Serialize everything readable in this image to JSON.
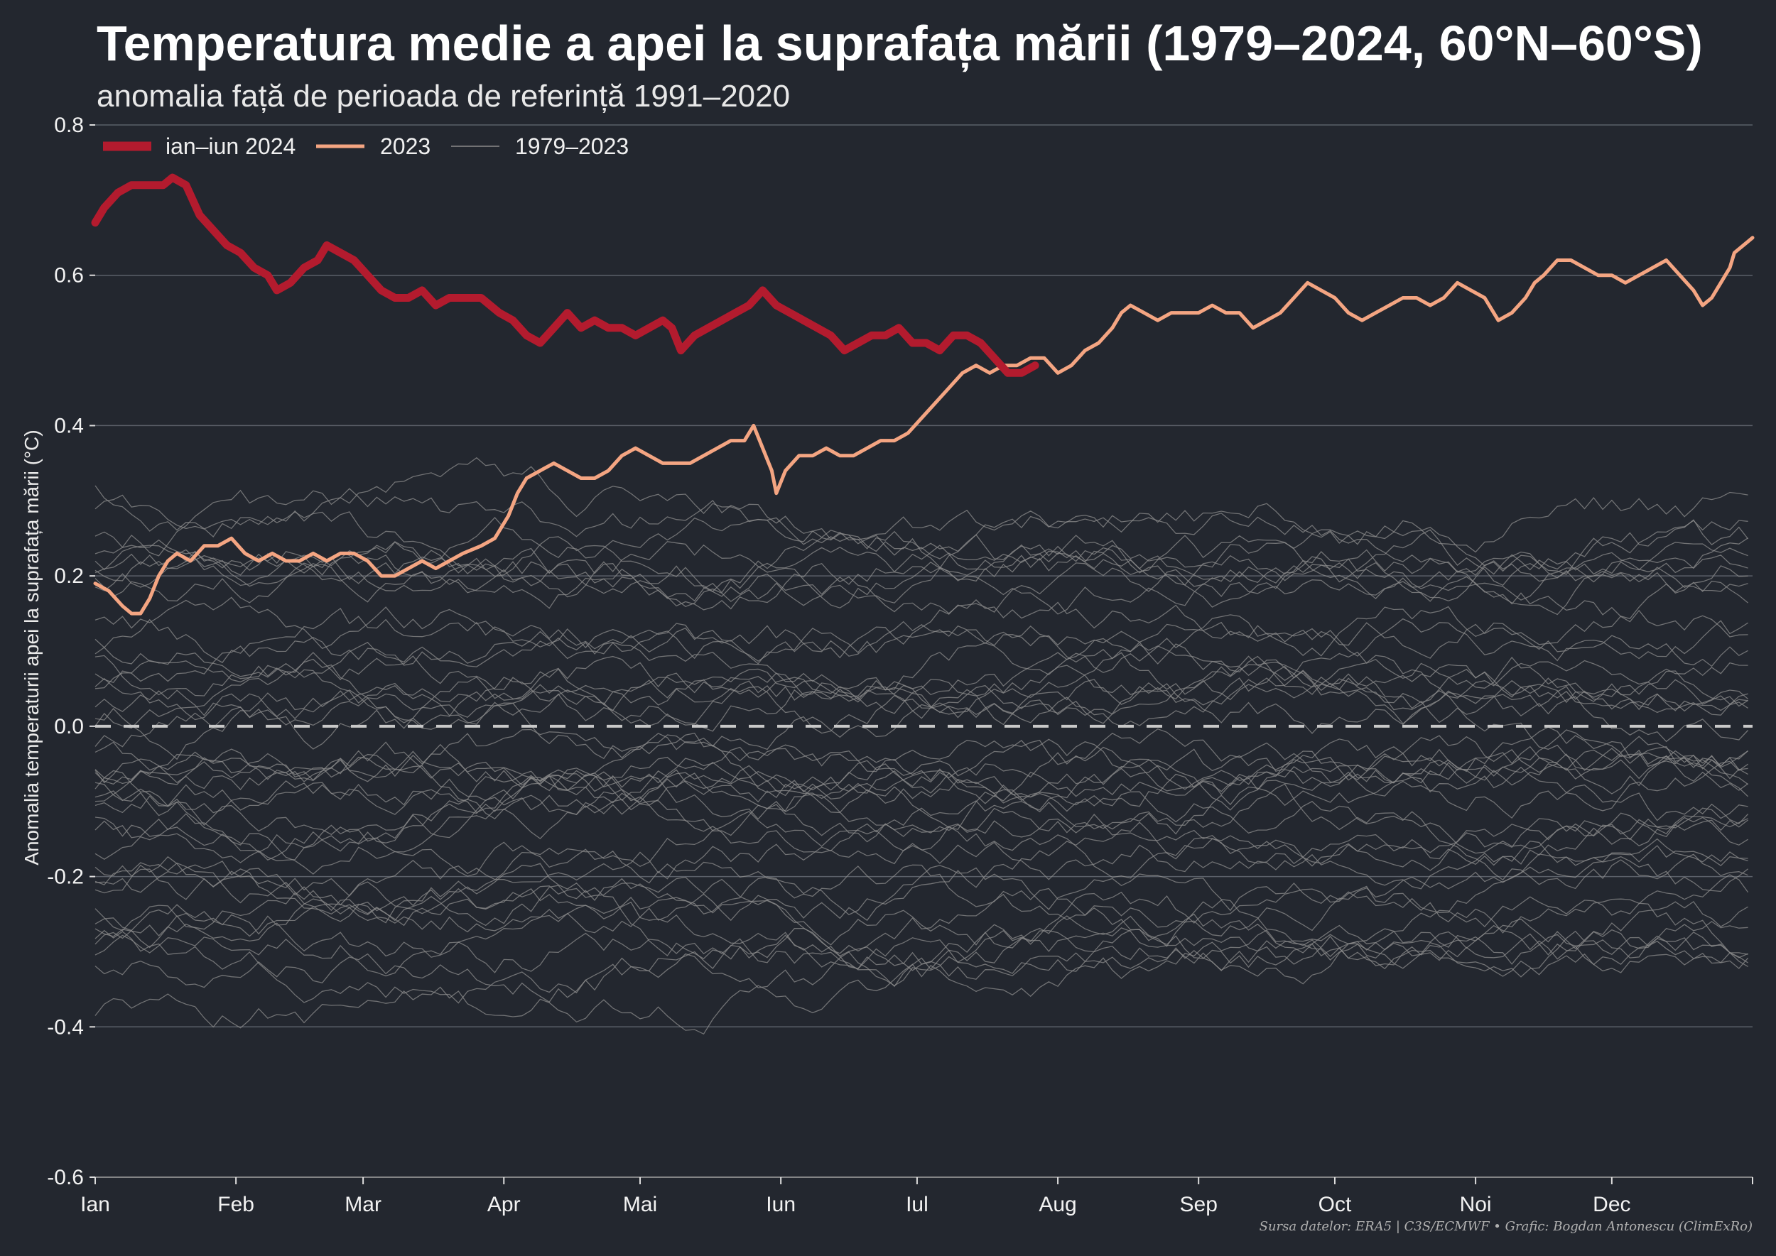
{
  "chart_data": {
    "type": "line",
    "title": "Temperatura medie a apei la suprafața mării (1979–2024, 60°N–60°S)",
    "subtitle": "anomalia față de perioada de referință 1991–2020",
    "ylabel": "Anomalia temperaturii apei la suprafața mării (°C)",
    "ylim": [
      -0.6,
      0.8
    ],
    "yticks": [
      -0.6,
      -0.4,
      -0.2,
      0.0,
      0.2,
      0.4,
      0.6,
      0.8
    ],
    "ytick_labels": [
      "-0.6",
      "-0.4",
      "-0.2",
      "0.0",
      "0.2",
      "0.4",
      "0.6",
      "0.8"
    ],
    "xlim": [
      1,
      366
    ],
    "xticks": [
      1,
      32,
      60,
      91,
      121,
      152,
      182,
      213,
      244,
      274,
      305,
      335
    ],
    "xtick_labels": [
      "Ian",
      "Feb",
      "Mar",
      "Apr",
      "Mai",
      "Iun",
      "Iul",
      "Aug",
      "Sep",
      "Oct",
      "Noi",
      "Dec"
    ],
    "reference_line": 0.0,
    "grid": "horizontal",
    "legend_position": "top-left",
    "legend": [
      {
        "label": "ian–iun 2024",
        "series": "2024"
      },
      {
        "label": "2023",
        "series": "2023"
      },
      {
        "label": "1979–2023",
        "series": "historical"
      }
    ],
    "series": [
      {
        "name": "ian–iun 2024",
        "color": "#b31b2e",
        "points": [
          [
            1,
            0.67
          ],
          [
            3,
            0.69
          ],
          [
            6,
            0.71
          ],
          [
            9,
            0.72
          ],
          [
            13,
            0.72
          ],
          [
            16,
            0.72
          ],
          [
            18,
            0.73
          ],
          [
            21,
            0.72
          ],
          [
            24,
            0.68
          ],
          [
            27,
            0.66
          ],
          [
            30,
            0.64
          ],
          [
            33,
            0.63
          ],
          [
            36,
            0.61
          ],
          [
            39,
            0.6
          ],
          [
            41,
            0.58
          ],
          [
            44,
            0.59
          ],
          [
            47,
            0.61
          ],
          [
            50,
            0.62
          ],
          [
            52,
            0.64
          ],
          [
            55,
            0.63
          ],
          [
            58,
            0.62
          ],
          [
            61,
            0.6
          ],
          [
            64,
            0.58
          ],
          [
            67,
            0.57
          ],
          [
            70,
            0.57
          ],
          [
            73,
            0.58
          ],
          [
            76,
            0.56
          ],
          [
            79,
            0.57
          ],
          [
            82,
            0.57
          ],
          [
            86,
            0.57
          ],
          [
            90,
            0.55
          ],
          [
            93,
            0.54
          ],
          [
            96,
            0.52
          ],
          [
            99,
            0.51
          ],
          [
            102,
            0.53
          ],
          [
            105,
            0.55
          ],
          [
            108,
            0.53
          ],
          [
            111,
            0.54
          ],
          [
            114,
            0.53
          ],
          [
            117,
            0.53
          ],
          [
            120,
            0.52
          ],
          [
            123,
            0.53
          ],
          [
            126,
            0.54
          ],
          [
            128,
            0.53
          ],
          [
            130,
            0.5
          ],
          [
            133,
            0.52
          ],
          [
            136,
            0.53
          ],
          [
            139,
            0.54
          ],
          [
            142,
            0.55
          ],
          [
            145,
            0.56
          ],
          [
            148,
            0.58
          ],
          [
            151,
            0.56
          ],
          [
            154,
            0.55
          ],
          [
            157,
            0.54
          ],
          [
            160,
            0.53
          ],
          [
            163,
            0.52
          ],
          [
            166,
            0.5
          ],
          [
            169,
            0.51
          ],
          [
            172,
            0.52
          ],
          [
            175,
            0.52
          ],
          [
            178,
            0.53
          ],
          [
            181,
            0.51
          ],
          [
            184,
            0.51
          ],
          [
            187,
            0.5
          ],
          [
            190,
            0.52
          ],
          [
            193,
            0.52
          ],
          [
            196,
            0.51
          ],
          [
            199,
            0.49
          ],
          [
            202,
            0.47
          ],
          [
            205,
            0.47
          ],
          [
            208,
            0.48
          ]
        ]
      },
      {
        "name": "2023",
        "color": "#f4a582",
        "points": [
          [
            1,
            0.19
          ],
          [
            4,
            0.18
          ],
          [
            7,
            0.16
          ],
          [
            9,
            0.15
          ],
          [
            11,
            0.15
          ],
          [
            13,
            0.17
          ],
          [
            15,
            0.2
          ],
          [
            17,
            0.22
          ],
          [
            19,
            0.23
          ],
          [
            22,
            0.22
          ],
          [
            25,
            0.24
          ],
          [
            28,
            0.24
          ],
          [
            31,
            0.25
          ],
          [
            34,
            0.23
          ],
          [
            37,
            0.22
          ],
          [
            40,
            0.23
          ],
          [
            43,
            0.22
          ],
          [
            46,
            0.22
          ],
          [
            49,
            0.23
          ],
          [
            52,
            0.22
          ],
          [
            55,
            0.23
          ],
          [
            58,
            0.23
          ],
          [
            61,
            0.22
          ],
          [
            64,
            0.2
          ],
          [
            67,
            0.2
          ],
          [
            70,
            0.21
          ],
          [
            73,
            0.22
          ],
          [
            76,
            0.21
          ],
          [
            79,
            0.22
          ],
          [
            82,
            0.23
          ],
          [
            86,
            0.24
          ],
          [
            89,
            0.25
          ],
          [
            92,
            0.28
          ],
          [
            94,
            0.31
          ],
          [
            96,
            0.33
          ],
          [
            99,
            0.34
          ],
          [
            102,
            0.35
          ],
          [
            105,
            0.34
          ],
          [
            108,
            0.33
          ],
          [
            111,
            0.33
          ],
          [
            114,
            0.34
          ],
          [
            117,
            0.36
          ],
          [
            120,
            0.37
          ],
          [
            123,
            0.36
          ],
          [
            126,
            0.35
          ],
          [
            129,
            0.35
          ],
          [
            132,
            0.35
          ],
          [
            135,
            0.36
          ],
          [
            138,
            0.37
          ],
          [
            141,
            0.38
          ],
          [
            144,
            0.38
          ],
          [
            146,
            0.4
          ],
          [
            148,
            0.37
          ],
          [
            150,
            0.34
          ],
          [
            151,
            0.31
          ],
          [
            153,
            0.34
          ],
          [
            156,
            0.36
          ],
          [
            159,
            0.36
          ],
          [
            162,
            0.37
          ],
          [
            165,
            0.36
          ],
          [
            168,
            0.36
          ],
          [
            171,
            0.37
          ],
          [
            174,
            0.38
          ],
          [
            177,
            0.38
          ],
          [
            180,
            0.39
          ],
          [
            183,
            0.41
          ],
          [
            186,
            0.43
          ],
          [
            189,
            0.45
          ],
          [
            192,
            0.47
          ],
          [
            195,
            0.48
          ],
          [
            198,
            0.47
          ],
          [
            201,
            0.48
          ],
          [
            204,
            0.48
          ],
          [
            207,
            0.49
          ],
          [
            210,
            0.49
          ],
          [
            213,
            0.47
          ],
          [
            216,
            0.48
          ],
          [
            219,
            0.5
          ],
          [
            222,
            0.51
          ],
          [
            225,
            0.53
          ],
          [
            227,
            0.55
          ],
          [
            229,
            0.56
          ],
          [
            232,
            0.55
          ],
          [
            235,
            0.54
          ],
          [
            238,
            0.55
          ],
          [
            241,
            0.55
          ],
          [
            244,
            0.55
          ],
          [
            247,
            0.56
          ],
          [
            250,
            0.55
          ],
          [
            253,
            0.55
          ],
          [
            256,
            0.53
          ],
          [
            259,
            0.54
          ],
          [
            262,
            0.55
          ],
          [
            265,
            0.57
          ],
          [
            268,
            0.59
          ],
          [
            271,
            0.58
          ],
          [
            274,
            0.57
          ],
          [
            277,
            0.55
          ],
          [
            280,
            0.54
          ],
          [
            283,
            0.55
          ],
          [
            286,
            0.56
          ],
          [
            289,
            0.57
          ],
          [
            292,
            0.57
          ],
          [
            295,
            0.56
          ],
          [
            298,
            0.57
          ],
          [
            301,
            0.59
          ],
          [
            304,
            0.58
          ],
          [
            307,
            0.57
          ],
          [
            310,
            0.54
          ],
          [
            313,
            0.55
          ],
          [
            316,
            0.57
          ],
          [
            318,
            0.59
          ],
          [
            320,
            0.6
          ],
          [
            323,
            0.62
          ],
          [
            326,
            0.62
          ],
          [
            329,
            0.61
          ],
          [
            332,
            0.6
          ],
          [
            335,
            0.6
          ],
          [
            338,
            0.59
          ],
          [
            341,
            0.6
          ],
          [
            344,
            0.61
          ],
          [
            347,
            0.62
          ],
          [
            350,
            0.6
          ],
          [
            353,
            0.58
          ],
          [
            355,
            0.56
          ],
          [
            357,
            0.57
          ],
          [
            359,
            0.59
          ],
          [
            361,
            0.61
          ],
          [
            362,
            0.63
          ],
          [
            364,
            0.64
          ],
          [
            366,
            0.65
          ]
        ]
      }
    ],
    "historical": {
      "name": "1979–2023",
      "color": "#8c8c8c",
      "count": 44
    },
    "caption": "Sursa datelor: ERA5 | C3S/ECMWF • Grafic: Bogdan Antonescu (ClimExRo)"
  }
}
